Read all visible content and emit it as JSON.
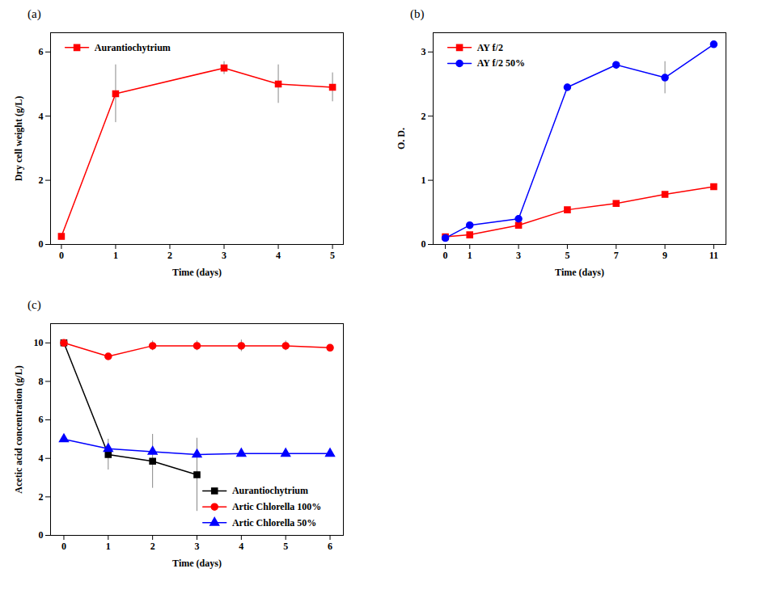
{
  "chart_data": [
    {
      "type": "line",
      "title": "(a)",
      "x_label": "Time (days)",
      "y_label": "Dry cell weight (g/L)",
      "legend": "upper left",
      "xlim": [
        -0.2,
        5.2
      ],
      "xticks": [
        0,
        1,
        2,
        3,
        4,
        5
      ],
      "ylim": [
        0,
        6.6
      ],
      "yticks": [
        0,
        2,
        4,
        6
      ],
      "series": [
        {
          "name": "Aurantiochytrium",
          "color": "#ff0000",
          "marker": "square",
          "x": [
            0,
            1,
            3,
            4,
            5
          ],
          "values": [
            0.25,
            4.7,
            5.5,
            5.0,
            4.9
          ],
          "errors": [
            0.05,
            0.9,
            0.2,
            0.6,
            0.45
          ]
        }
      ]
    },
    {
      "type": "line",
      "title": "(b)",
      "x_label": "Time (days)",
      "y_label": "O. D.",
      "legend": "upper left",
      "xlim": [
        -0.5,
        11.5
      ],
      "xticks": [
        0,
        1,
        3,
        5,
        7,
        9,
        11
      ],
      "ylim": [
        0,
        3.3
      ],
      "yticks": [
        0,
        1,
        2,
        3
      ],
      "series": [
        {
          "name": "AY f/2",
          "color": "#ff0000",
          "marker": "square",
          "x": [
            0,
            1,
            3,
            5,
            7,
            9,
            11
          ],
          "values": [
            0.12,
            0.15,
            0.3,
            0.54,
            0.64,
            0.78,
            0.9
          ],
          "errors": [
            0.02,
            0.02,
            0.02,
            0.03,
            0.03,
            0.03,
            0.03
          ]
        },
        {
          "name": "AY f/2 50%",
          "color": "#0000ff",
          "marker": "circle",
          "x": [
            0,
            1,
            3,
            5,
            7,
            9,
            11
          ],
          "values": [
            0.1,
            0.3,
            0.4,
            2.45,
            2.8,
            2.6,
            3.12
          ],
          "errors": [
            0.02,
            0.02,
            0.03,
            0.05,
            0.05,
            0.25,
            0.04
          ]
        }
      ]
    },
    {
      "type": "line",
      "title": "(c)",
      "x_label": "Time (days)",
      "y_label": "Acetic acid concentration (g/L)",
      "legend": "lower center",
      "xlim": [
        -0.3,
        6.3
      ],
      "xticks": [
        0,
        1,
        2,
        3,
        4,
        5,
        6
      ],
      "ylim": [
        0,
        11
      ],
      "yticks": [
        0,
        2,
        4,
        6,
        8,
        10
      ],
      "series": [
        {
          "name": "Aurantiochytrium",
          "color": "#000000",
          "marker": "square",
          "x": [
            0,
            1,
            2,
            3
          ],
          "values": [
            10,
            4.2,
            3.85,
            3.15
          ],
          "errors": [
            0.05,
            0.8,
            1.4,
            1.9
          ]
        },
        {
          "name": "Artic Chlorella 100%",
          "color": "#ff0000",
          "marker": "circle",
          "x": [
            0,
            1,
            2,
            3,
            4,
            5,
            6
          ],
          "values": [
            10,
            9.3,
            9.85,
            9.85,
            9.85,
            9.85,
            9.75
          ],
          "errors": [
            0.05,
            0.1,
            0.25,
            0.25,
            0.3,
            0.25,
            0.1
          ]
        },
        {
          "name": "Artic Chlorella 50%",
          "color": "#0000ff",
          "marker": "triangle",
          "x": [
            0,
            1,
            2,
            3,
            4,
            5,
            6
          ],
          "values": [
            5,
            4.5,
            4.35,
            4.2,
            4.25,
            4.25,
            4.25
          ],
          "errors": [
            0.05,
            0.1,
            0.15,
            0.1,
            0.15,
            0.15,
            0.15
          ]
        }
      ]
    }
  ]
}
